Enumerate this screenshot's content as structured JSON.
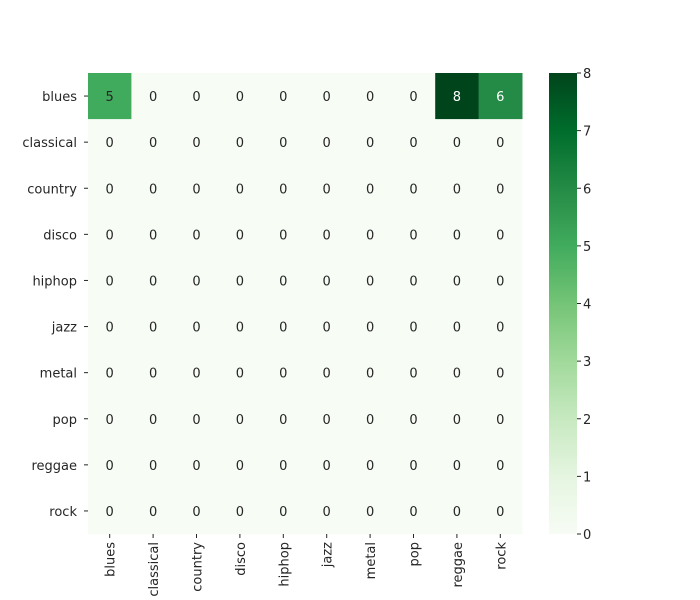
{
  "chart_data": {
    "type": "heatmap",
    "row_labels": [
      "blues",
      "classical",
      "country",
      "disco",
      "hiphop",
      "jazz",
      "metal",
      "pop",
      "reggae",
      "rock"
    ],
    "col_labels": [
      "blues",
      "classical",
      "country",
      "disco",
      "hiphop",
      "jazz",
      "metal",
      "pop",
      "reggae",
      "rock"
    ],
    "values": [
      [
        5,
        0,
        0,
        0,
        0,
        0,
        0,
        0,
        8,
        6
      ],
      [
        0,
        0,
        0,
        0,
        0,
        0,
        0,
        0,
        0,
        0
      ],
      [
        0,
        0,
        0,
        0,
        0,
        0,
        0,
        0,
        0,
        0
      ],
      [
        0,
        0,
        0,
        0,
        0,
        0,
        0,
        0,
        0,
        0
      ],
      [
        0,
        0,
        0,
        0,
        0,
        0,
        0,
        0,
        0,
        0
      ],
      [
        0,
        0,
        0,
        0,
        0,
        0,
        0,
        0,
        0,
        0
      ],
      [
        0,
        0,
        0,
        0,
        0,
        0,
        0,
        0,
        0,
        0
      ],
      [
        0,
        0,
        0,
        0,
        0,
        0,
        0,
        0,
        0,
        0
      ],
      [
        0,
        0,
        0,
        0,
        0,
        0,
        0,
        0,
        0,
        0
      ],
      [
        0,
        0,
        0,
        0,
        0,
        0,
        0,
        0,
        0,
        0
      ]
    ],
    "colormap": "Greens",
    "color_range": [
      0,
      8
    ],
    "colorbar_ticks": [
      0,
      1,
      2,
      3,
      4,
      5,
      6,
      7,
      8
    ],
    "annotated": true,
    "title": "",
    "xlabel": "",
    "ylabel": ""
  }
}
